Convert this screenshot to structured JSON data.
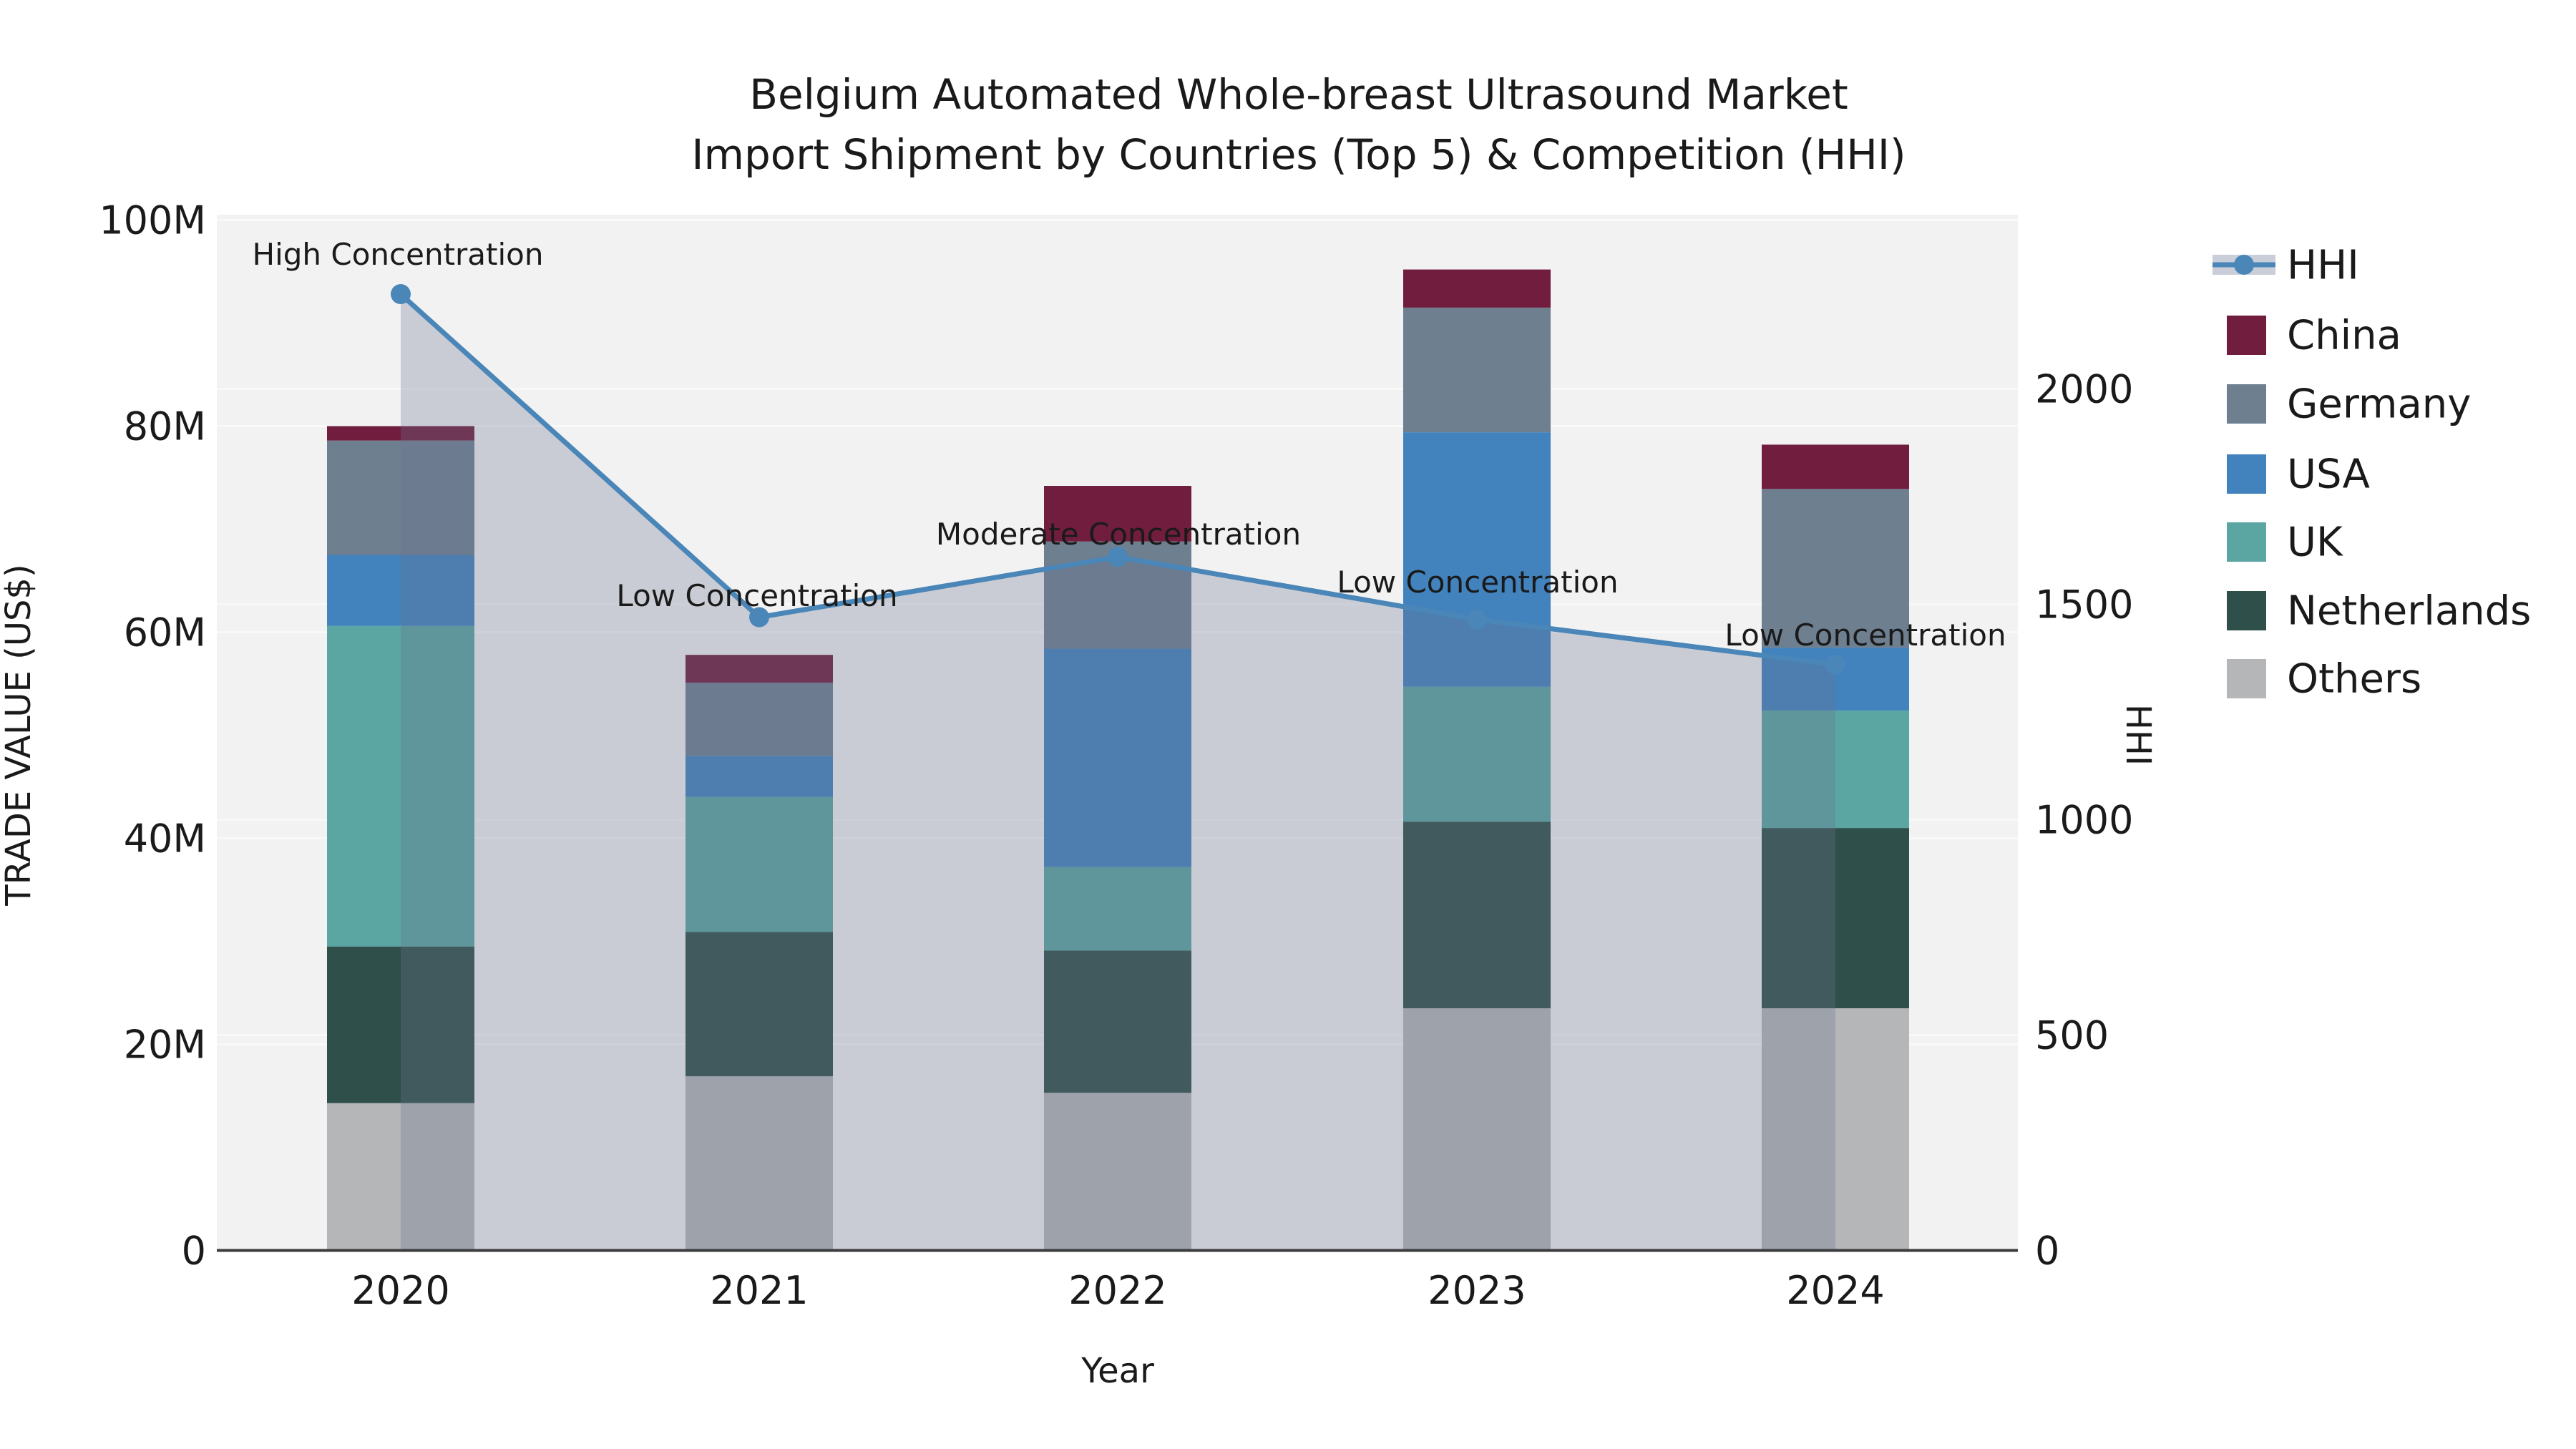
{
  "title": {
    "line1": "Belgium Automated Whole-breast Ultrasound Market",
    "line2": "Import Shipment by Countries (Top 5) & Competition (HHI)"
  },
  "axes": {
    "y_left": {
      "title": "TRADE VALUE (US$)",
      "tick_labels": [
        "0",
        "20M",
        "40M",
        "60M",
        "80M",
        "100M"
      ],
      "tick_values_musd": [
        0,
        20,
        40,
        60,
        80,
        100
      ],
      "range_musd": [
        0,
        100
      ]
    },
    "y_right": {
      "title": "HHI",
      "tick_labels": [
        "0",
        "500",
        "1000",
        "1500",
        "2000"
      ],
      "tick_values": [
        0,
        500,
        1000,
        1500,
        2000
      ],
      "range": [
        0,
        2404
      ]
    },
    "x": {
      "title": "Year",
      "tick_labels": [
        "2020",
        "2021",
        "2022",
        "2023",
        "2024"
      ]
    }
  },
  "legend": {
    "position": "right",
    "items": [
      "HHI",
      "China",
      "Germany",
      "USA",
      "UK",
      "Netherlands",
      "Others"
    ]
  },
  "colors": {
    "hhi_line": "#4a86b8",
    "hhi_area": "#69758f",
    "hhi_area_opacity": 0.3,
    "hhi_legend_band": "#c9ced8",
    "china": "#701d3e",
    "germany": "#6e7f90",
    "usa": "#4282bd",
    "uk": "#5ba5a2",
    "netherlands": "#2e4f4a",
    "others": "#b5b6b8",
    "plot_bg": "#f2f2f2",
    "grid": "#ffffff",
    "spine": "#3c3c3c"
  },
  "chart_data": {
    "type": "bar+line",
    "title": "Belgium Automated Whole-breast Ultrasound Market Import Shipment by Countries (Top 5) & Competition (HHI)",
    "xlabel": "Year",
    "ylabel_left": "TRADE VALUE (US$)",
    "ylabel_right": "HHI",
    "categories": [
      "2020",
      "2021",
      "2022",
      "2023",
      "2024"
    ],
    "bar_unit": "million US$",
    "stacked": true,
    "series": [
      {
        "name": "China",
        "color_key": "china",
        "values": [
          1.4,
          2.7,
          5.4,
          3.7,
          4.3
        ]
      },
      {
        "name": "Germany",
        "color_key": "germany",
        "values": [
          11.1,
          7.1,
          10.4,
          12.1,
          15.4
        ]
      },
      {
        "name": "USA",
        "color_key": "usa",
        "values": [
          6.9,
          4.0,
          21.2,
          24.7,
          6.1
        ]
      },
      {
        "name": "UK",
        "color_key": "uk",
        "values": [
          31.1,
          13.1,
          8.1,
          13.1,
          11.4
        ]
      },
      {
        "name": "Netherlands",
        "color_key": "netherlands",
        "values": [
          15.2,
          14.0,
          13.8,
          18.1,
          17.5
        ]
      },
      {
        "name": "Others",
        "color_key": "others",
        "values": [
          14.3,
          16.9,
          15.3,
          23.5,
          23.5
        ]
      }
    ],
    "stack_totals_musd": [
      80.0,
      57.8,
      74.2,
      95.2,
      78.2
    ],
    "line_series": {
      "name": "HHI",
      "axis": "right",
      "values": [
        2220,
        1470,
        1610,
        1465,
        1360
      ],
      "area_fill": true
    },
    "annotations": [
      {
        "x": "2020",
        "text": "High Concentration"
      },
      {
        "x": "2021",
        "text": "Low Concentration"
      },
      {
        "x": "2022",
        "text": "Moderate Concentration"
      },
      {
        "x": "2023",
        "text": "Low Concentration"
      },
      {
        "x": "2024",
        "text": "Low Concentration"
      }
    ],
    "grid": true,
    "legend_position": "right"
  }
}
